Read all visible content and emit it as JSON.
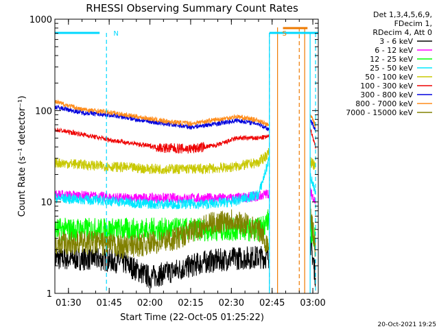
{
  "chart_data": {
    "type": "line",
    "title": "RHESSI Observing Summary Count Rates",
    "xlabel": "Start Time (22-Oct-05 01:25:22)",
    "ylabel": "Count Rate (s⁻¹ detector⁻¹)",
    "yscale": "log",
    "ylim": [
      1,
      1000
    ],
    "xlim": [
      "01:25",
      "03:02"
    ],
    "x_ticks": [
      "01:30",
      "01:45",
      "02:00",
      "02:15",
      "02:30",
      "02:45",
      "03:00"
    ],
    "y_ticks": [
      "1",
      "10",
      "100",
      "1000"
    ],
    "legend_header": [
      "Det 1,3,4,5,6,9,",
      "FDecim 1,",
      "RDecim 4, Att 0"
    ],
    "legend_position": "right",
    "timestamp": "20-Oct-2021 19:25",
    "annotations": [
      {
        "text": "N",
        "x": "01:45",
        "color": "#00d8ff"
      },
      {
        "text": "S",
        "x": "02:47",
        "color": "#ee7a00"
      }
    ],
    "markers": {
      "cyan_dashed": [
        "01:44",
        "02:44",
        "03:01"
      ],
      "cyan_solid": [
        "02:44",
        "02:59"
      ],
      "orange_solid": [
        "02:47",
        "02:57"
      ],
      "orange_dashed": [
        "02:55"
      ]
    },
    "series": [
      {
        "name": "3 - 6 keV",
        "color": "#000000",
        "x": [
          "01:25",
          "01:40",
          "01:50",
          "02:00",
          "02:10",
          "02:20",
          "02:30",
          "02:40",
          "02:44",
          "02:59",
          "03:01"
        ],
        "y": [
          2.4,
          2.4,
          2.2,
          1.5,
          1.8,
          2.2,
          2.4,
          2.5,
          2.5,
          4,
          1.5
        ]
      },
      {
        "name": "6 - 12 keV",
        "color": "#ff00ff",
        "x": [
          "01:25",
          "01:40",
          "01:50",
          "02:00",
          "02:10",
          "02:20",
          "02:30",
          "02:40",
          "02:44",
          "02:59",
          "03:01"
        ],
        "y": [
          12,
          11.5,
          11,
          11,
          11,
          11,
          11,
          11.5,
          12.5,
          13,
          10
        ]
      },
      {
        "name": "12 - 25 keV",
        "color": "#00ff00",
        "x": [
          "01:25",
          "01:40",
          "01:50",
          "02:00",
          "02:10",
          "02:20",
          "02:30",
          "02:40",
          "02:44",
          "02:59",
          "03:01"
        ],
        "y": [
          5,
          5,
          5,
          5,
          5,
          5,
          5,
          5,
          6.5,
          5,
          4
        ]
      },
      {
        "name": "25 - 50 keV",
        "color": "#00e8ff",
        "x": [
          "01:25",
          "01:40",
          "01:50",
          "02:00",
          "02:10",
          "02:20",
          "02:30",
          "02:40",
          "02:44",
          "02:59",
          "03:01"
        ],
        "y": [
          11,
          10.5,
          10,
          9.5,
          9.5,
          9.5,
          10,
          12,
          30,
          20,
          12
        ]
      },
      {
        "name": "50 - 100 keV",
        "color": "#c8c800",
        "x": [
          "01:25",
          "01:40",
          "01:50",
          "02:00",
          "02:10",
          "02:20",
          "02:30",
          "02:40",
          "02:44",
          "02:59",
          "03:01"
        ],
        "y": [
          27,
          25,
          24,
          23,
          23,
          23,
          24,
          27,
          35,
          28,
          24
        ]
      },
      {
        "name": "100 - 300 keV",
        "color": "#ee0000",
        "x": [
          "01:25",
          "01:35",
          "01:45",
          "01:55",
          "02:05",
          "02:15",
          "02:25",
          "02:32",
          "02:40",
          "02:44",
          "02:59",
          "03:01"
        ],
        "y": [
          62,
          55,
          48,
          43,
          39,
          38,
          42,
          50,
          50,
          52,
          65,
          40
        ]
      },
      {
        "name": "300 - 800 keV",
        "color": "#0000dd",
        "x": [
          "01:25",
          "01:35",
          "01:45",
          "01:55",
          "02:05",
          "02:15",
          "02:25",
          "02:32",
          "02:40",
          "02:44",
          "02:59",
          "03:01"
        ],
        "y": [
          110,
          95,
          90,
          80,
          72,
          66,
          72,
          78,
          72,
          62,
          80,
          62
        ]
      },
      {
        "name": "800 - 7000 keV",
        "color": "#ff8c1a",
        "x": [
          "01:25",
          "01:35",
          "01:45",
          "01:55",
          "02:05",
          "02:15",
          "02:25",
          "02:32",
          "02:40",
          "02:44",
          "02:59",
          "03:01"
        ],
        "y": [
          125,
          103,
          96,
          86,
          77,
          72,
          80,
          86,
          78,
          68,
          92,
          68
        ]
      },
      {
        "name": "7000 - 15000 keV",
        "color": "#808000",
        "x": [
          "01:25",
          "01:40",
          "01:50",
          "02:00",
          "02:10",
          "02:20",
          "02:30",
          "02:40",
          "02:44",
          "02:59",
          "03:01"
        ],
        "y": [
          3.5,
          3.6,
          3.2,
          3.5,
          4,
          5.5,
          6.5,
          5,
          3.2,
          8,
          3
        ]
      }
    ]
  }
}
